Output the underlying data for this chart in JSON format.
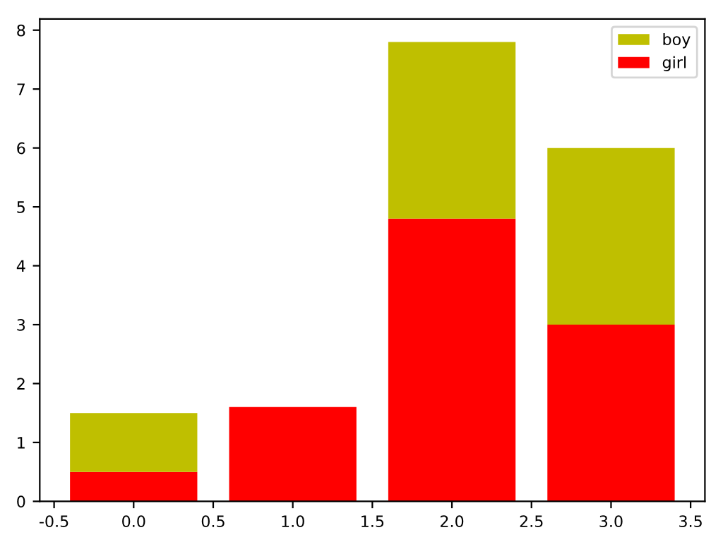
{
  "chart_data": {
    "type": "bar",
    "stacked": true,
    "x": [
      0,
      1,
      2,
      3
    ],
    "series": [
      {
        "name": "girl",
        "color": "#ff0000",
        "values": [
          0.5,
          1.6,
          4.8,
          3.0
        ]
      },
      {
        "name": "boy",
        "color": "#bfbf00",
        "values": [
          1.0,
          null,
          3.0,
          3.0
        ]
      }
    ],
    "xlim": [
      -0.59,
      3.59
    ],
    "xticks": [
      -0.5,
      {
        "value": 0,
        "label": "0.0"
      },
      0.5,
      {
        "value": 1,
        "label": "1.0"
      },
      1.5,
      {
        "value": 2,
        "label": "2.0"
      },
      2.5,
      {
        "value": 3,
        "label": "3.0"
      },
      3.5
    ],
    "ylim": [
      0,
      8.19
    ],
    "yticks": [
      0,
      1,
      2,
      3,
      4,
      5,
      6,
      7,
      8
    ],
    "grid": false,
    "legend": "top right"
  }
}
